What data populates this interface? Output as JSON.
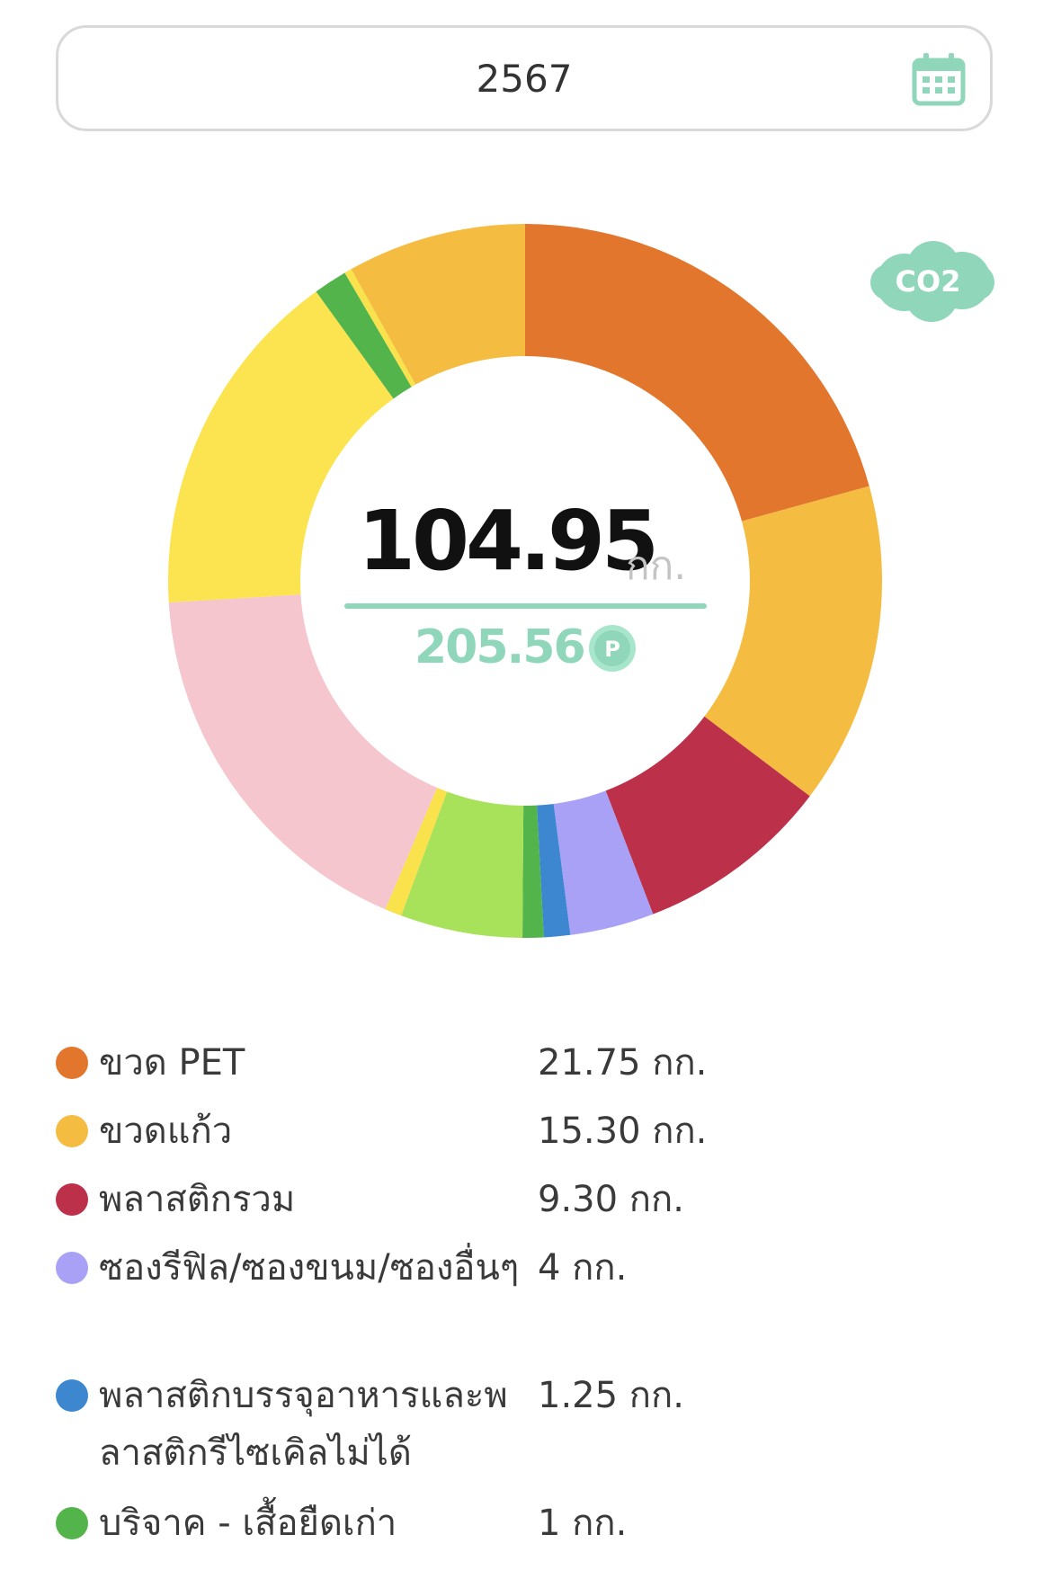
{
  "year_selector": {
    "value": "2567",
    "icon": "calendar-icon",
    "icon_color": "#8fd6bb"
  },
  "co2_badge": {
    "text": "CO2",
    "icon": "co2-cloud-icon",
    "color": "#8fd6bb"
  },
  "summary": {
    "total_weight": "104.95",
    "unit": "กก.",
    "points": "205.56",
    "points_icon": "p-coin-icon",
    "accent": "#8fd6bb"
  },
  "chart_data": {
    "type": "pie",
    "style": "donut",
    "slices": [
      {
        "value": 21.75,
        "color": "#e2762d"
      },
      {
        "value": 15.3,
        "color": "#f5bc42"
      },
      {
        "value": 9.3,
        "color": "#bc3049"
      },
      {
        "value": 4,
        "color": "#a9a1f6"
      },
      {
        "value": 1.25,
        "color": "#3d87d0"
      },
      {
        "value": 1,
        "color": "#54b44c"
      },
      {
        "value": 5.8,
        "color": "#a8e25a"
      },
      {
        "value": 0.8,
        "color": "#f9e24c"
      },
      {
        "value": 18.5,
        "color": "#f5c6ce"
      },
      {
        "value": 16.8,
        "color": "#fbe44f"
      },
      {
        "value": 1.6,
        "color": "#54b44c"
      },
      {
        "value": 0.35,
        "color": "#f9e24c"
      },
      {
        "value": 8.5,
        "color": "#f5bc42"
      }
    ]
  },
  "legend": [
    {
      "label": "ขวด PET",
      "value": "21.75 กก.",
      "color": "#e2762d"
    },
    {
      "label": "ขวดแก้ว",
      "value": "15.30 กก.",
      "color": "#f5bc42"
    },
    {
      "label": "พลาสติกรวม",
      "value": "9.30 กก.",
      "color": "#bc3049"
    },
    {
      "label": "ซองรีฟิล/ซองขนม/ซองอื่นๆ",
      "value": "4 กก.",
      "color": "#a9a1f6"
    },
    {
      "label": "พลาสติกบรรจุอาหารและพลาสติกรีไซเคิลไม่ได้",
      "value": "1.25 กก.",
      "color": "#3d87d0"
    },
    {
      "label": "บริจาค - เสื้อยืดเก่า",
      "value": "1 กก.",
      "color": "#54b44c"
    }
  ]
}
